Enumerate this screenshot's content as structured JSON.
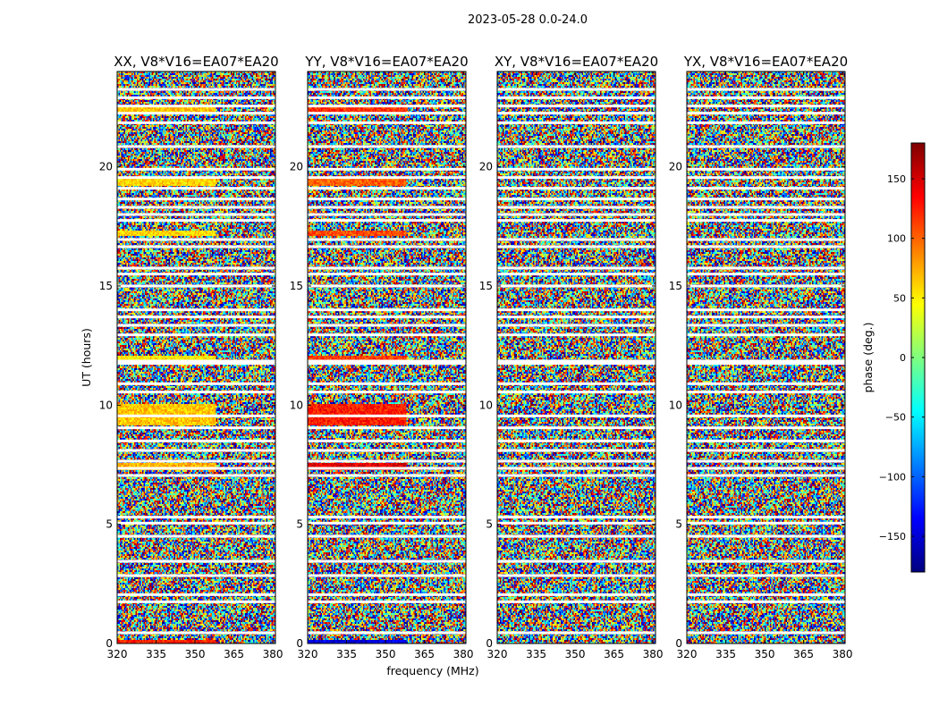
{
  "figure": {
    "suptitle": "2023-05-28 0.0-24.0"
  },
  "chart_data": {
    "type": "heatmap",
    "panels": [
      {
        "title": "XX, V8*V16=EA07*EA20",
        "pol": "XX"
      },
      {
        "title": "YY, V8*V16=EA07*EA20",
        "pol": "YY"
      },
      {
        "title": "XY, V8*V16=EA07*EA20",
        "pol": "XY"
      },
      {
        "title": "YX, V8*V16=EA07*EA20",
        "pol": "YX"
      }
    ],
    "xlabel": "frequency (MHz)",
    "ylabel": "UT (hours)",
    "xlim": [
      320,
      381
    ],
    "ylim": [
      0,
      24
    ],
    "xticks": [
      320,
      335,
      350,
      365,
      380
    ],
    "yticks": [
      0,
      5,
      10,
      15,
      20
    ],
    "colorbar": {
      "label": "phase (deg.)",
      "range": [
        -180,
        180
      ],
      "ticks": [
        -150,
        -100,
        -50,
        0,
        50,
        100,
        150
      ],
      "tick_labels": [
        "−150",
        "−100",
        "−50",
        "0",
        "50",
        "100",
        "150"
      ],
      "colormap": "jet",
      "colors": [
        "#00007f",
        "#0000ff",
        "#007fff",
        "#00ffff",
        "#7fff7f",
        "#ffff00",
        "#ff7f00",
        "#ff0000",
        "#7f0000"
      ]
    },
    "flagged_ut_hours": [
      0.45,
      1.75,
      2.05,
      2.85,
      3.45,
      4.5,
      5.05,
      5.3,
      7.05,
      7.35,
      7.65,
      8.1,
      8.5,
      9.05,
      9.55,
      10.55,
      10.9,
      11.75,
      11.85,
      12.95,
      13.35,
      13.7,
      14.0,
      15.0,
      15.5,
      15.75,
      16.65,
      16.95,
      17.75,
      18.0,
      18.3,
      18.65,
      19.1,
      19.55,
      19.9,
      20.85,
      21.85,
      22.25,
      22.55,
      22.9,
      23.25
    ]
  }
}
